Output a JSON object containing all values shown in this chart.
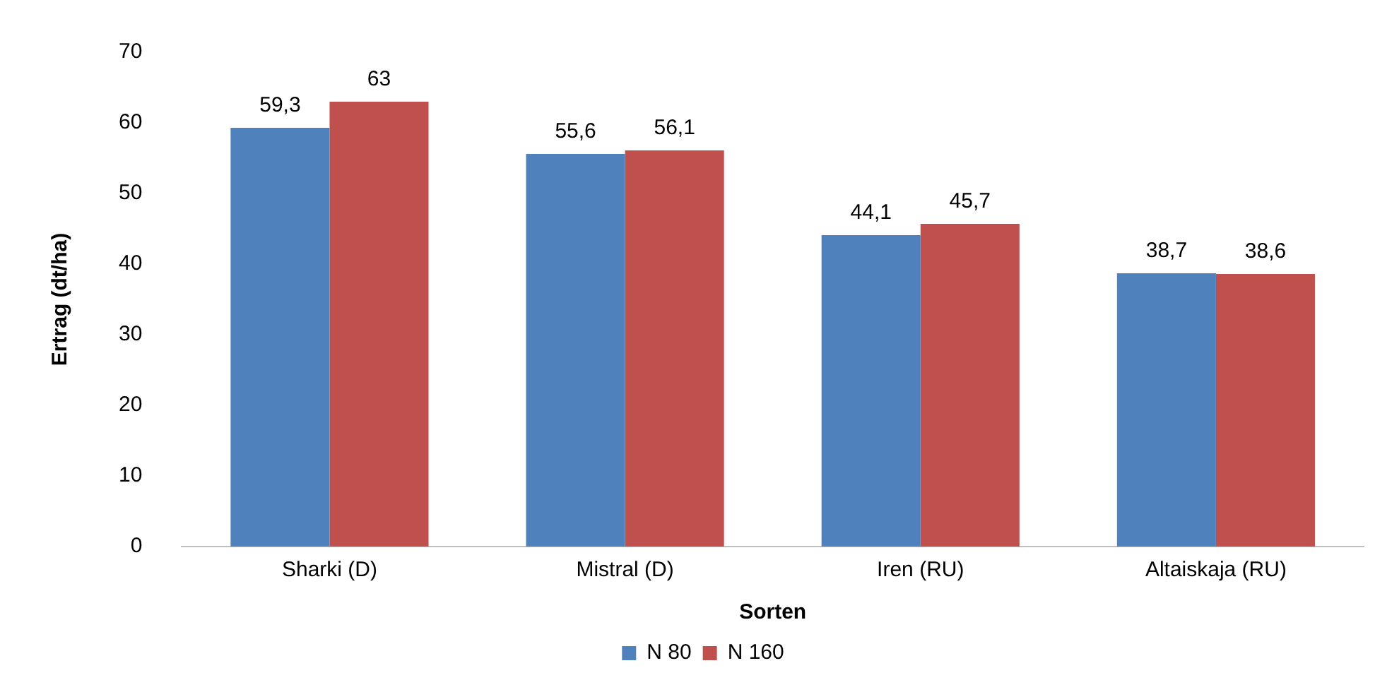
{
  "chart_data": {
    "type": "bar",
    "xlabel": "Sorten",
    "ylabel": "Ertrag (dt/ha)",
    "categories": [
      "Sharki (D)",
      "Mistral (D)",
      "Iren (RU)",
      "Altaiskaja (RU)"
    ],
    "series": [
      {
        "name": "N 80",
        "color": "#4f81bd",
        "values": [
          59.3,
          55.6,
          44.1,
          38.7
        ],
        "value_labels": [
          "59,3",
          "55,6",
          "44,1",
          "38,7"
        ]
      },
      {
        "name": "N 160",
        "color": "#c0504d",
        "values": [
          63,
          56.1,
          45.7,
          38.6
        ],
        "value_labels": [
          "63",
          "56,1",
          "45,7",
          "38,6"
        ]
      }
    ],
    "ylim": [
      0,
      70
    ],
    "yticks": [
      0,
      10,
      20,
      30,
      40,
      50,
      60,
      70
    ],
    "grid": false,
    "legend": "bottom"
  }
}
